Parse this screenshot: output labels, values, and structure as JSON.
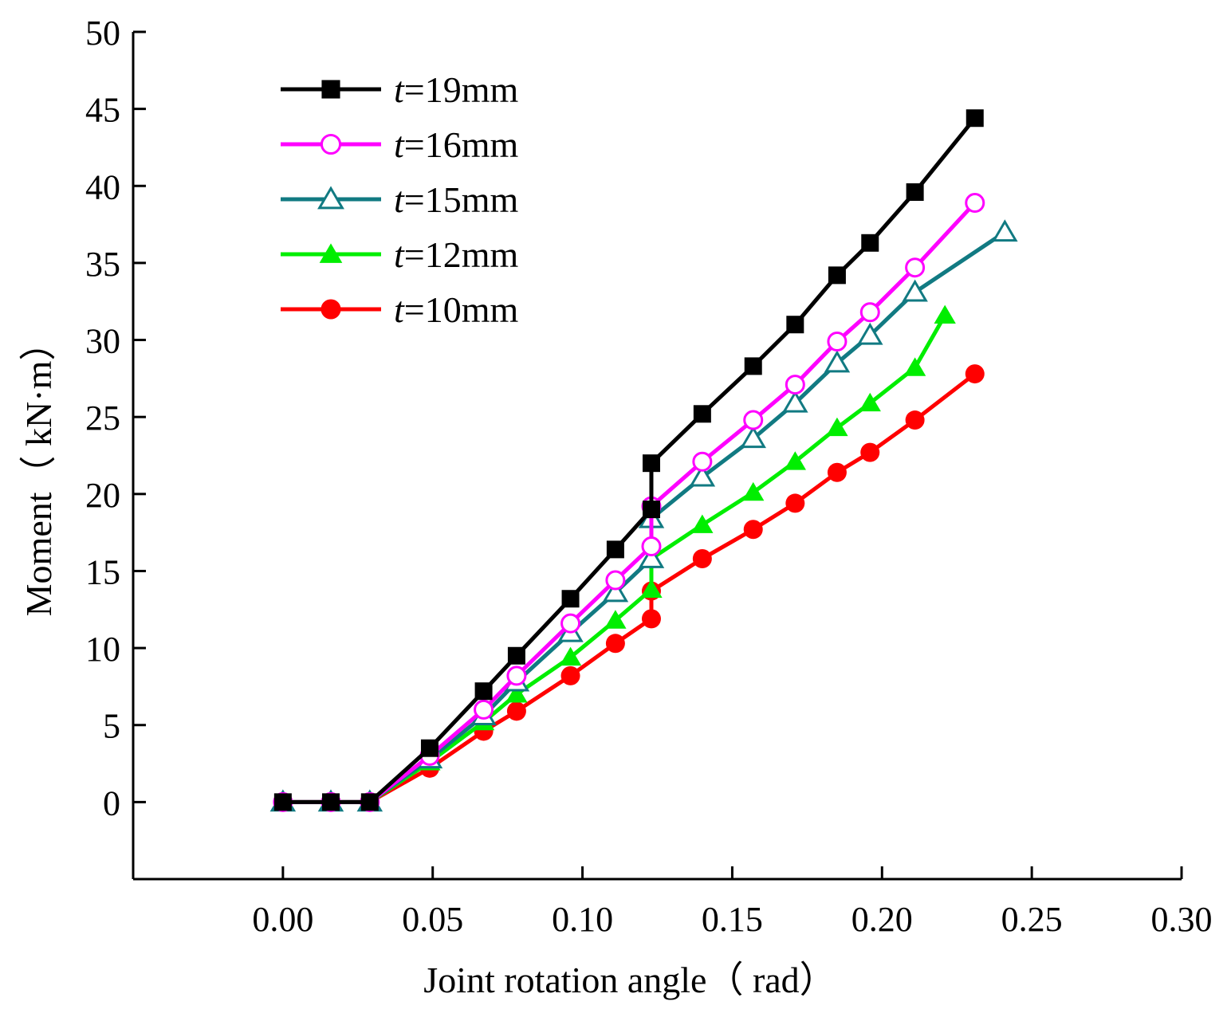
{
  "chart_data": {
    "type": "line",
    "title": "",
    "xlabel": "Joint rotation angle（ rad）",
    "ylabel": "Moment（ kN·m）",
    "xlim": [
      -0.05,
      0.3
    ],
    "ylim": [
      -5,
      50
    ],
    "x_ticks": [
      "0.00",
      "0.05",
      "0.10",
      "0.15",
      "0.20",
      "0.25",
      "0.30"
    ],
    "y_ticks": [
      "0",
      "5",
      "10",
      "15",
      "20",
      "25",
      "30",
      "35",
      "40",
      "45",
      "50"
    ],
    "grid": false,
    "legend_position": "top-left",
    "series": [
      {
        "name": "t=19mm",
        "name_prefix": "t",
        "name_suffix": "=19mm",
        "color": "#000000",
        "marker": "square-filled",
        "x": [
          0.0,
          0.016,
          0.029,
          0.049,
          0.067,
          0.078,
          0.096,
          0.111,
          0.123,
          0.123,
          0.14,
          0.157,
          0.171,
          0.185,
          0.196,
          0.211,
          0.231
        ],
        "y": [
          0.0,
          0.0,
          0.0,
          3.5,
          7.2,
          9.5,
          13.2,
          16.4,
          19.0,
          22.0,
          25.2,
          28.3,
          31.0,
          34.2,
          36.3,
          39.6,
          44.4
        ]
      },
      {
        "name": "t=16mm",
        "name_prefix": "t",
        "name_suffix": "=16mm",
        "color": "#ff00ff",
        "marker": "circle-open",
        "x": [
          0.0,
          0.016,
          0.029,
          0.049,
          0.067,
          0.078,
          0.096,
          0.111,
          0.123,
          0.123,
          0.14,
          0.157,
          0.171,
          0.185,
          0.196,
          0.211,
          0.231
        ],
        "y": [
          0.0,
          0.0,
          0.0,
          3.0,
          6.0,
          8.2,
          11.6,
          14.4,
          16.6,
          19.2,
          22.1,
          24.8,
          27.1,
          29.9,
          31.8,
          34.7,
          38.9
        ]
      },
      {
        "name": "t=15mm",
        "name_prefix": "t",
        "name_suffix": "=15mm",
        "color": "#117a82",
        "marker": "triangle-open",
        "x": [
          0.0,
          0.016,
          0.029,
          0.049,
          0.067,
          0.078,
          0.096,
          0.111,
          0.123,
          0.123,
          0.14,
          0.157,
          0.171,
          0.185,
          0.196,
          0.211,
          0.241
        ],
        "y": [
          0.0,
          0.0,
          0.0,
          2.8,
          5.6,
          7.8,
          11.0,
          13.6,
          15.8,
          18.4,
          21.1,
          23.6,
          25.9,
          28.5,
          30.3,
          33.1,
          37.0
        ]
      },
      {
        "name": "t=12mm",
        "name_prefix": "t",
        "name_suffix": "=12mm",
        "color": "#00ee00",
        "marker": "triangle-filled",
        "x": [
          0.0,
          0.016,
          0.029,
          0.049,
          0.067,
          0.078,
          0.096,
          0.111,
          0.123,
          0.123,
          0.14,
          0.157,
          0.171,
          0.185,
          0.196,
          0.211,
          0.221
        ],
        "y": [
          0.0,
          0.0,
          0.0,
          2.6,
          5.2,
          7.0,
          9.4,
          11.8,
          13.8,
          15.8,
          18.0,
          20.1,
          22.1,
          24.3,
          25.9,
          28.2,
          31.6
        ]
      },
      {
        "name": "t=10mm",
        "name_prefix": "t",
        "name_suffix": "=10mm",
        "color": "#ff0000",
        "marker": "circle-filled",
        "x": [
          0.0,
          0.016,
          0.029,
          0.049,
          0.067,
          0.078,
          0.096,
          0.111,
          0.123,
          0.123,
          0.14,
          0.157,
          0.171,
          0.185,
          0.196,
          0.211,
          0.231
        ],
        "y": [
          0.0,
          0.0,
          0.0,
          2.2,
          4.6,
          5.9,
          8.2,
          10.3,
          11.9,
          13.7,
          15.8,
          17.7,
          19.4,
          21.4,
          22.7,
          24.8,
          27.8
        ]
      }
    ]
  }
}
